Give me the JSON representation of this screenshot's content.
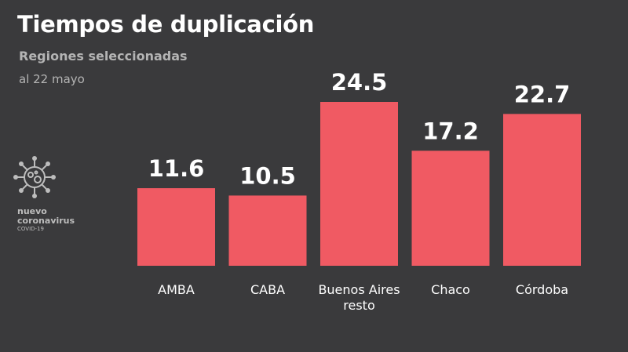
{
  "header": {
    "title": "Tiempos de duplicación",
    "subtitle": "Regiones seleccionadas",
    "date": "al 22 mayo"
  },
  "logo": {
    "icon": "coronavirus-icon",
    "line1": "nuevo",
    "line2": "coronavirus",
    "line3": "COVID-19"
  },
  "colors": {
    "background": "#3a3a3c",
    "bar": "#f05a63",
    "label": "#ffffff",
    "secondary_text": "#b4b4b4"
  },
  "chart_data": {
    "type": "bar",
    "categories": [
      "AMBA",
      "CABA",
      "Buenos Aires resto",
      "Chaco",
      "Córdoba"
    ],
    "category_lines": [
      [
        "AMBA"
      ],
      [
        "CABA"
      ],
      [
        "Buenos Aires",
        "resto"
      ],
      [
        "Chaco"
      ],
      [
        "Córdoba"
      ]
    ],
    "values": [
      11.6,
      10.5,
      24.5,
      17.2,
      22.7
    ],
    "value_labels": [
      "11.6",
      "10.5",
      "24.5",
      "17.2",
      "22.7"
    ],
    "title": "Tiempos de duplicación",
    "subtitle": "Regiones seleccionadas",
    "ylim": [
      0,
      24.5
    ],
    "grid": false,
    "legend": "none"
  }
}
